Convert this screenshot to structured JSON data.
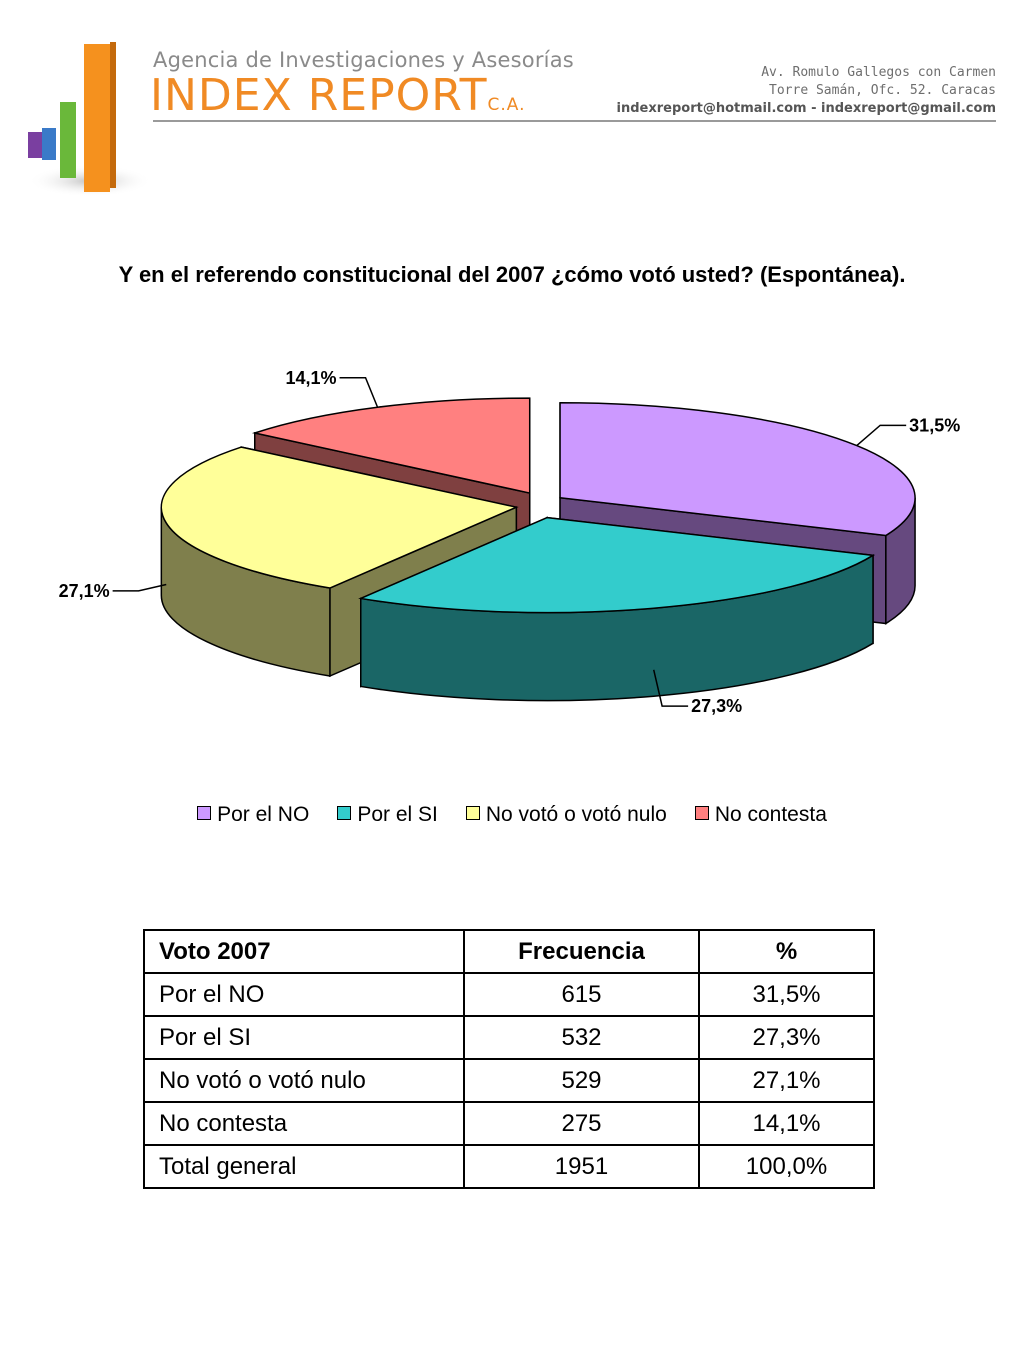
{
  "header": {
    "agency": "Agencia de Investigaciones y Asesorías",
    "brand": "INDEX REPORT",
    "brand_suffix": "C.A.",
    "address_line1": "Av. Romulo Gallegos con Carmen",
    "address_line2": "Torre Samán, Ofc. 52. Caracas",
    "emails": "indexreport@hotmail.com  -  indexreport@gmail.com"
  },
  "chart_data": {
    "type": "pie",
    "title": "Y en el referendo constitucional del 2007 ¿cómo votó usted? (Espontánea).",
    "legend_position": "bottom",
    "series": [
      {
        "name": "Por el NO",
        "value": 31.5,
        "label": "31,5%",
        "color": "#cc99ff",
        "side": "#66497f"
      },
      {
        "name": "Por el SI",
        "value": 27.3,
        "label": "27,3%",
        "color": "#33cccc",
        "side": "#1a6666"
      },
      {
        "name": "No votó o votó nulo",
        "value": 27.1,
        "label": "27,1%",
        "color": "#ffff99",
        "side": "#7f7f4c"
      },
      {
        "name": "No contesta",
        "value": 14.1,
        "label": "14,1%",
        "color": "#ff8080",
        "side": "#7f4040"
      }
    ]
  },
  "table": {
    "headers": [
      "Voto 2007",
      "Frecuencia",
      "%"
    ],
    "rows": [
      [
        "Por el NO",
        "615",
        "31,5%"
      ],
      [
        "Por el SI",
        "532",
        "27,3%"
      ],
      [
        "No votó o votó nulo",
        "529",
        "27,1%"
      ],
      [
        "No contesta",
        "275",
        "14,1%"
      ],
      [
        "Total general",
        "1951",
        "100,0%"
      ]
    ]
  },
  "colors": {
    "brand_orange": "#f08a24",
    "agency_gray": "#8a8a8a"
  }
}
